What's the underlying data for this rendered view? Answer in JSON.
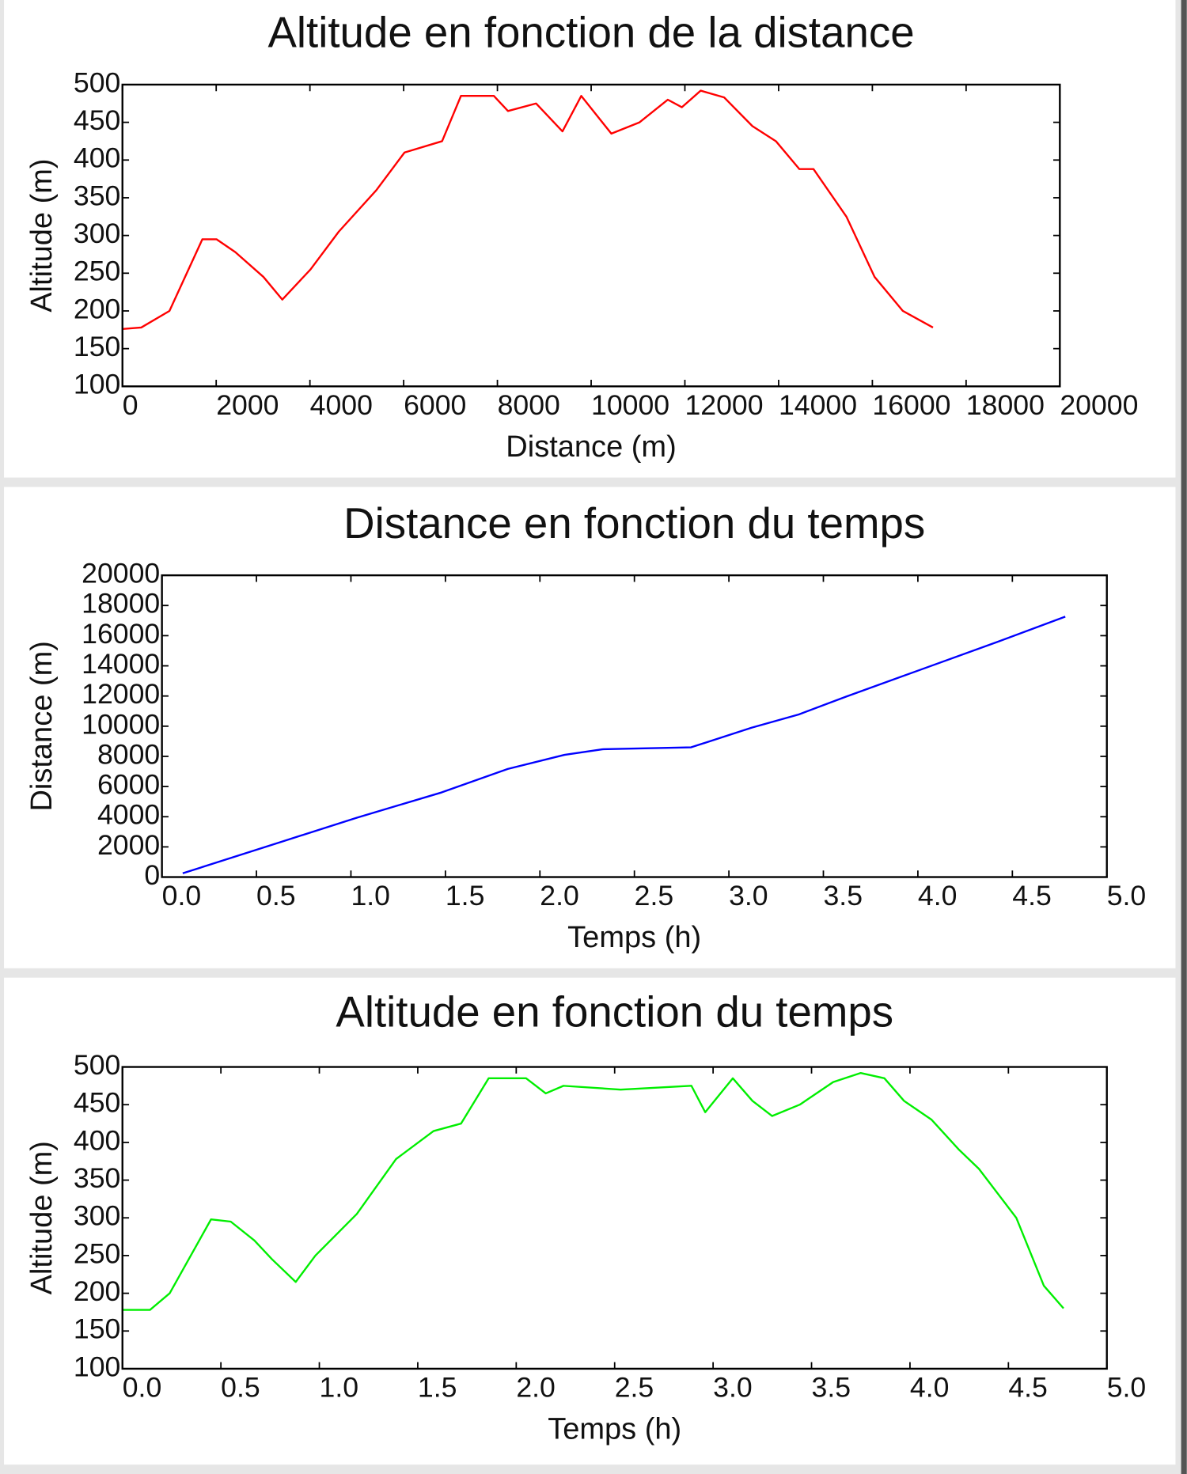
{
  "chart_data": [
    {
      "type": "line",
      "title": "Altitude en fonction de la distance",
      "xlabel": "Distance (m)",
      "ylabel": "Altitude (m)",
      "x": [
        0,
        401,
        1003,
        1705,
        2006,
        2407,
        3009,
        3410,
        4012,
        4614,
        5416,
        6018,
        6820,
        7222,
        7924,
        8225,
        8826,
        9388,
        9789,
        10431,
        11033,
        11635,
        11936,
        12337,
        12838,
        13440,
        13942,
        14443,
        14744,
        15446,
        16048,
        16650,
        17293
      ],
      "series": [
        {
          "color": "#ff0000",
          "values": [
            176,
            178,
            200,
            295,
            295,
            278,
            245,
            215,
            255,
            305,
            360,
            410,
            425,
            485,
            485,
            465,
            475,
            438,
            485,
            435,
            450,
            480,
            470,
            492,
            483,
            445,
            425,
            388,
            388,
            325,
            245,
            200,
            178
          ]
        }
      ],
      "xlim": [
        0,
        20000
      ],
      "xticks": [
        0,
        2000,
        4000,
        6000,
        8000,
        10000,
        12000,
        14000,
        16000,
        18000,
        20000
      ],
      "ylim": [
        100,
        500
      ],
      "yticks": [
        100,
        150,
        200,
        250,
        300,
        350,
        400,
        450,
        500
      ]
    },
    {
      "type": "line",
      "title": "Distance en fonction du temps",
      "xlabel": "Temps (h)",
      "ylabel": "Distance (m)",
      "x": [
        0.11,
        0.64,
        1.03,
        1.48,
        1.83,
        2.13,
        2.33,
        2.8,
        3.12,
        3.37,
        3.62,
        4.02,
        4.42,
        4.78
      ],
      "series": [
        {
          "color": "#0000ff",
          "values": [
            250,
            2370,
            3930,
            5610,
            7165,
            8100,
            8470,
            8600,
            9900,
            10780,
            11960,
            13770,
            15580,
            17260
          ]
        }
      ],
      "xlim": [
        0,
        5
      ],
      "xticks": [
        {
          "value": 0,
          "label": "0.0"
        },
        0.5,
        {
          "value": 1,
          "label": "1.0"
        },
        1.5,
        {
          "value": 2,
          "label": "2.0"
        },
        2.5,
        {
          "value": 3,
          "label": "3.0"
        },
        3.5,
        {
          "value": 4,
          "label": "4.0"
        },
        4.5,
        {
          "value": 5,
          "label": "5.0"
        }
      ],
      "ylim": [
        0,
        20000
      ],
      "yticks": [
        0,
        2000,
        4000,
        6000,
        8000,
        10000,
        12000,
        14000,
        16000,
        18000,
        20000
      ]
    },
    {
      "type": "line",
      "title": "Altitude en fonction du temps",
      "xlabel": "Temps (h)",
      "ylabel": "Altitude (m)",
      "x": [
        0,
        0.14,
        0.24,
        0.45,
        0.55,
        0.67,
        0.76,
        0.88,
        0.98,
        1.19,
        1.39,
        1.58,
        1.72,
        1.86,
        2.05,
        2.15,
        2.24,
        2.53,
        2.89,
        2.96,
        3.1,
        3.2,
        3.3,
        3.44,
        3.61,
        3.75,
        3.87,
        3.97,
        4.11,
        4.25,
        4.35,
        4.54,
        4.68,
        4.78
      ],
      "series": [
        {
          "color": "#00ee00",
          "values": [
            178,
            178,
            200,
            298,
            295,
            270,
            245,
            215,
            250,
            305,
            378,
            415,
            425,
            485,
            485,
            465,
            475,
            470,
            475,
            440,
            485,
            455,
            435,
            450,
            480,
            492,
            485,
            455,
            430,
            390,
            365,
            300,
            210,
            180
          ]
        }
      ],
      "xlim": [
        0,
        5
      ],
      "xticks": [
        {
          "value": 0,
          "label": "0.0"
        },
        0.5,
        {
          "value": 1,
          "label": "1.0"
        },
        1.5,
        {
          "value": 2,
          "label": "2.0"
        },
        2.5,
        {
          "value": 3,
          "label": "3.0"
        },
        3.5,
        {
          "value": 4,
          "label": "4.0"
        },
        4.5,
        {
          "value": 5,
          "label": "5.0"
        }
      ],
      "ylim": [
        100,
        500
      ],
      "yticks": [
        100,
        150,
        200,
        250,
        300,
        350,
        400,
        450,
        500
      ]
    }
  ]
}
